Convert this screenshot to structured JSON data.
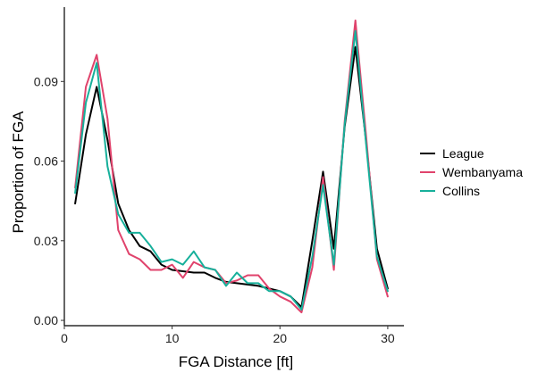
{
  "chart_data": {
    "type": "line",
    "title": "",
    "xlabel": "FGA Distance [ft]",
    "ylabel": "Proportion of FGA",
    "xlim": [
      0,
      31.5
    ],
    "ylim": [
      -0.002,
      0.118
    ],
    "xticks": [
      0,
      10,
      20,
      30
    ],
    "xtick_labels": [
      "0",
      "10",
      "20",
      "30"
    ],
    "yticks": [
      0.0,
      0.03,
      0.06,
      0.09
    ],
    "ytick_labels": [
      "0.00",
      "0.03",
      "0.06",
      "0.09"
    ],
    "grid": false,
    "legend_position": "right",
    "x": [
      1,
      2,
      3,
      4,
      5,
      6,
      7,
      8,
      9,
      10,
      11,
      12,
      13,
      14,
      15,
      16,
      17,
      18,
      19,
      20,
      21,
      22,
      23,
      24,
      25,
      26,
      27,
      28,
      29,
      30
    ],
    "series": [
      {
        "name": "League",
        "color": "#000000",
        "values": [
          0.044,
          0.07,
          0.088,
          0.068,
          0.044,
          0.034,
          0.028,
          0.026,
          0.021,
          0.019,
          0.0185,
          0.018,
          0.018,
          0.016,
          0.0145,
          0.014,
          0.0135,
          0.013,
          0.012,
          0.011,
          0.009,
          0.005,
          0.03,
          0.056,
          0.027,
          0.073,
          0.103,
          0.067,
          0.027,
          0.012
        ]
      },
      {
        "name": "Wembanyama",
        "color": "#e0436c",
        "values": [
          0.05,
          0.088,
          0.1,
          0.076,
          0.034,
          0.025,
          0.023,
          0.019,
          0.019,
          0.021,
          0.016,
          0.022,
          0.02,
          0.019,
          0.014,
          0.015,
          0.017,
          0.017,
          0.012,
          0.009,
          0.007,
          0.003,
          0.02,
          0.054,
          0.019,
          0.075,
          0.113,
          0.069,
          0.023,
          0.009
        ]
      },
      {
        "name": "Collins",
        "color": "#17b09b",
        "values": [
          0.048,
          0.082,
          0.097,
          0.058,
          0.04,
          0.033,
          0.033,
          0.028,
          0.022,
          0.023,
          0.021,
          0.026,
          0.02,
          0.019,
          0.013,
          0.018,
          0.014,
          0.014,
          0.011,
          0.011,
          0.009,
          0.004,
          0.024,
          0.051,
          0.021,
          0.074,
          0.109,
          0.066,
          0.024,
          0.011
        ]
      }
    ]
  }
}
